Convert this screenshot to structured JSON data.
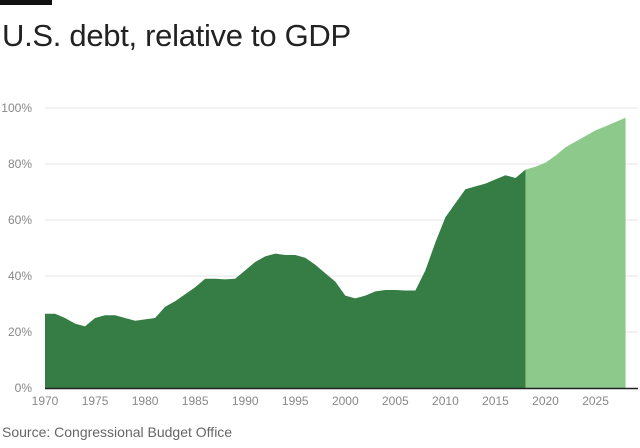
{
  "chart_data": {
    "type": "area",
    "title": "U.S. debt, relative to GDP",
    "source": "Source: Congressional Budget Office",
    "xlim": [
      1970,
      2028
    ],
    "ylim": [
      0,
      100
    ],
    "x_ticks": [
      "1970",
      "1975",
      "1980",
      "1985",
      "1990",
      "1995",
      "2000",
      "2005",
      "2010",
      "2015",
      "2020",
      "2025"
    ],
    "y_ticks": [
      "0%",
      "20%",
      "40%",
      "60%",
      "80%",
      "100%"
    ],
    "grid": true,
    "series": [
      {
        "kind": "historical",
        "color": "#357d44",
        "x": [
          1970,
          1971,
          1972,
          1973,
          1974,
          1975,
          1976,
          1977,
          1978,
          1979,
          1980,
          1981,
          1982,
          1983,
          1984,
          1985,
          1986,
          1987,
          1988,
          1989,
          1990,
          1991,
          1992,
          1993,
          1994,
          1995,
          1996,
          1997,
          1998,
          1999,
          2000,
          2001,
          2002,
          2003,
          2004,
          2005,
          2006,
          2007,
          2008,
          2009,
          2010,
          2011,
          2012,
          2013,
          2014,
          2015,
          2016,
          2017,
          2018
        ],
        "y": [
          26.5,
          26.5,
          25,
          23,
          22,
          25,
          26,
          26,
          25,
          24,
          24.5,
          25,
          29,
          31,
          33.5,
          36,
          39,
          39,
          38.8,
          39,
          42,
          45,
          47,
          48,
          47.5,
          47.5,
          46.5,
          44,
          41,
          38,
          33,
          32,
          33,
          34.5,
          35,
          35,
          34.8,
          34.8,
          42,
          52,
          61,
          66,
          71,
          72,
          73,
          74.5,
          76,
          75,
          78
        ]
      },
      {
        "kind": "projected",
        "color": "#8cc98a",
        "x": [
          2018,
          2019,
          2020,
          2021,
          2022,
          2023,
          2024,
          2025,
          2026,
          2027,
          2028
        ],
        "y": [
          78,
          79,
          80.5,
          83,
          86,
          88,
          90,
          92,
          93.5,
          95,
          96.5
        ]
      }
    ]
  }
}
